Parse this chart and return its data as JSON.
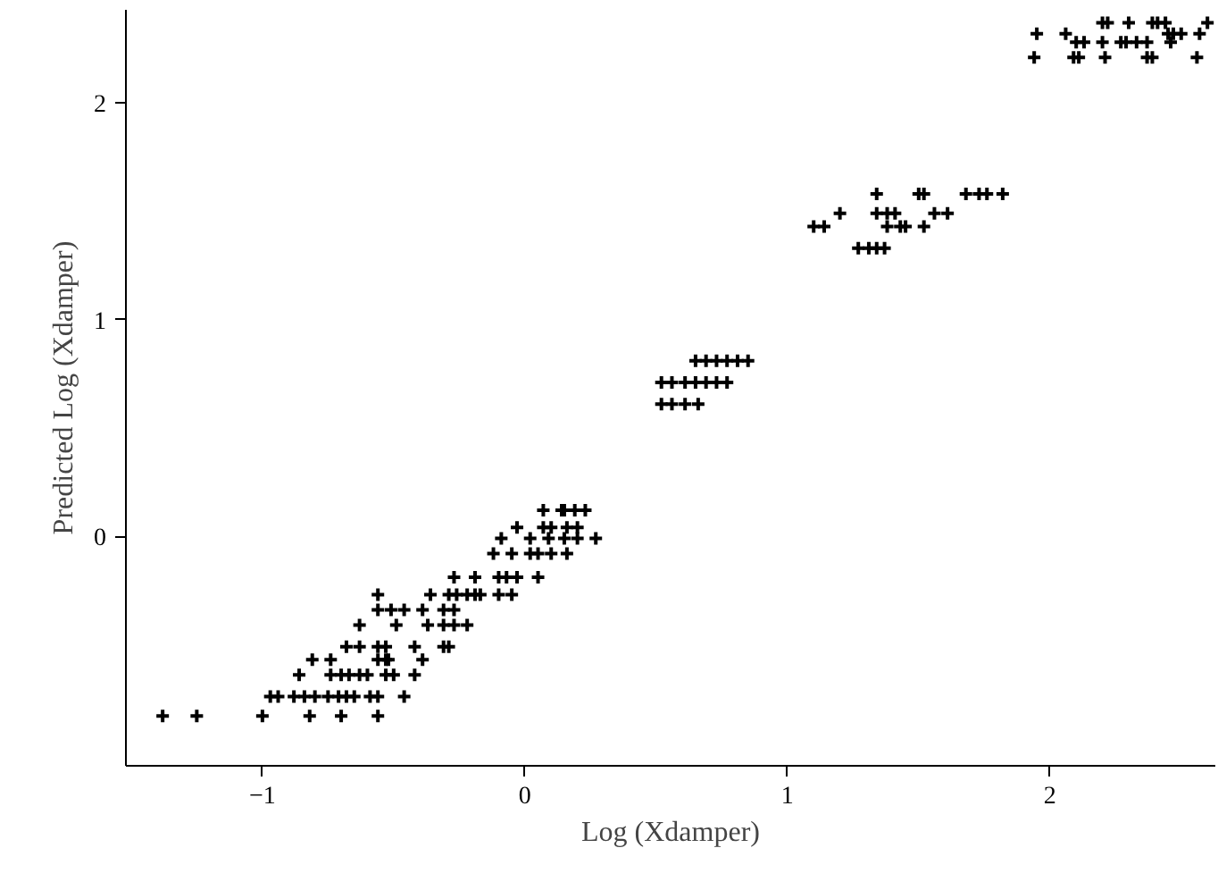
{
  "chart_data": {
    "type": "scatter",
    "xlabel": "Log (Xdamper)",
    "ylabel": "Predicted Log (Xdamper)",
    "xlim": [
      -1.52,
      2.63
    ],
    "ylim": [
      -1.06,
      2.43
    ],
    "xticks": [
      -1,
      0,
      1,
      2
    ],
    "yticks": [
      0,
      1,
      2
    ],
    "grid": false,
    "marker": "cross",
    "series": [
      {
        "color": "#000000",
        "x": [
          -1.38,
          -1.25,
          -1.0,
          -0.82,
          -0.7,
          -0.56,
          -0.97,
          -0.94,
          -0.88,
          -0.84,
          -0.8,
          -0.75,
          -0.71,
          -0.68,
          -0.65,
          -0.59,
          -0.56,
          -0.46,
          -0.86,
          -0.74,
          -0.7,
          -0.67,
          -0.63,
          -0.6,
          -0.53,
          -0.5,
          -0.42,
          -0.81,
          -0.74,
          -0.56,
          -0.53,
          -0.52,
          -0.39,
          -0.68,
          -0.63,
          -0.56,
          -0.53,
          -0.42,
          -0.31,
          -0.29,
          -0.63,
          -0.49,
          -0.37,
          -0.31,
          -0.27,
          -0.22,
          -0.56,
          -0.51,
          -0.46,
          -0.39,
          -0.31,
          -0.27,
          -0.56,
          -0.36,
          -0.29,
          -0.26,
          -0.22,
          -0.19,
          -0.17,
          -0.1,
          -0.05,
          -0.27,
          -0.19,
          -0.1,
          -0.07,
          -0.03,
          0.05,
          -0.12,
          -0.05,
          0.02,
          0.05,
          0.1,
          0.16,
          -0.09,
          0.02,
          0.09,
          0.15,
          0.2,
          0.27,
          -0.03,
          0.07,
          0.1,
          0.16,
          0.2,
          0.07,
          0.14,
          0.15,
          0.19,
          0.23,
          0.65,
          0.69,
          0.73,
          0.77,
          0.81,
          0.85,
          0.52,
          0.56,
          0.61,
          0.65,
          0.69,
          0.73,
          0.77,
          0.52,
          0.56,
          0.61,
          0.66,
          1.34,
          1.5,
          1.52,
          1.68,
          1.73,
          1.76,
          1.82,
          1.2,
          1.34,
          1.38,
          1.41,
          1.56,
          1.61,
          1.1,
          1.14,
          1.38,
          1.43,
          1.45,
          1.52,
          1.27,
          1.31,
          1.34,
          1.37,
          2.2,
          2.22,
          2.3,
          2.39,
          2.41,
          2.44,
          2.6,
          1.95,
          2.06,
          2.45,
          2.47,
          2.5,
          2.57,
          2.1,
          2.13,
          2.2,
          2.27,
          2.29,
          2.33,
          2.37,
          2.46,
          1.94,
          2.09,
          2.11,
          2.21,
          2.37,
          2.39,
          2.56
        ],
        "values": [
          -0.83,
          -0.83,
          -0.83,
          -0.83,
          -0.83,
          -0.83,
          -0.74,
          -0.74,
          -0.74,
          -0.74,
          -0.74,
          -0.74,
          -0.74,
          -0.74,
          -0.74,
          -0.74,
          -0.74,
          -0.74,
          -0.64,
          -0.64,
          -0.64,
          -0.64,
          -0.64,
          -0.64,
          -0.64,
          -0.64,
          -0.64,
          -0.57,
          -0.57,
          -0.57,
          -0.57,
          -0.57,
          -0.57,
          -0.51,
          -0.51,
          -0.51,
          -0.51,
          -0.51,
          -0.51,
          -0.51,
          -0.41,
          -0.41,
          -0.41,
          -0.41,
          -0.41,
          -0.41,
          -0.34,
          -0.34,
          -0.34,
          -0.34,
          -0.34,
          -0.34,
          -0.27,
          -0.27,
          -0.27,
          -0.27,
          -0.27,
          -0.27,
          -0.27,
          -0.27,
          -0.27,
          -0.19,
          -0.19,
          -0.19,
          -0.19,
          -0.19,
          -0.19,
          -0.08,
          -0.08,
          -0.08,
          -0.08,
          -0.08,
          -0.08,
          -0.01,
          -0.01,
          -0.01,
          -0.01,
          -0.01,
          -0.01,
          0.04,
          0.04,
          0.04,
          0.04,
          0.04,
          0.12,
          0.12,
          0.12,
          0.12,
          0.12,
          0.81,
          0.81,
          0.81,
          0.81,
          0.81,
          0.81,
          0.71,
          0.71,
          0.71,
          0.71,
          0.71,
          0.71,
          0.71,
          0.61,
          0.61,
          0.61,
          0.61,
          1.58,
          1.58,
          1.58,
          1.58,
          1.58,
          1.58,
          1.58,
          1.49,
          1.49,
          1.49,
          1.49,
          1.49,
          1.49,
          1.43,
          1.43,
          1.43,
          1.43,
          1.43,
          1.43,
          1.33,
          1.33,
          1.33,
          1.33,
          2.37,
          2.37,
          2.37,
          2.37,
          2.37,
          2.37,
          2.37,
          2.32,
          2.32,
          2.32,
          2.32,
          2.32,
          2.32,
          2.28,
          2.28,
          2.28,
          2.28,
          2.28,
          2.28,
          2.28,
          2.28,
          2.21,
          2.21,
          2.21,
          2.21,
          2.21,
          2.21,
          2.21
        ]
      }
    ]
  }
}
